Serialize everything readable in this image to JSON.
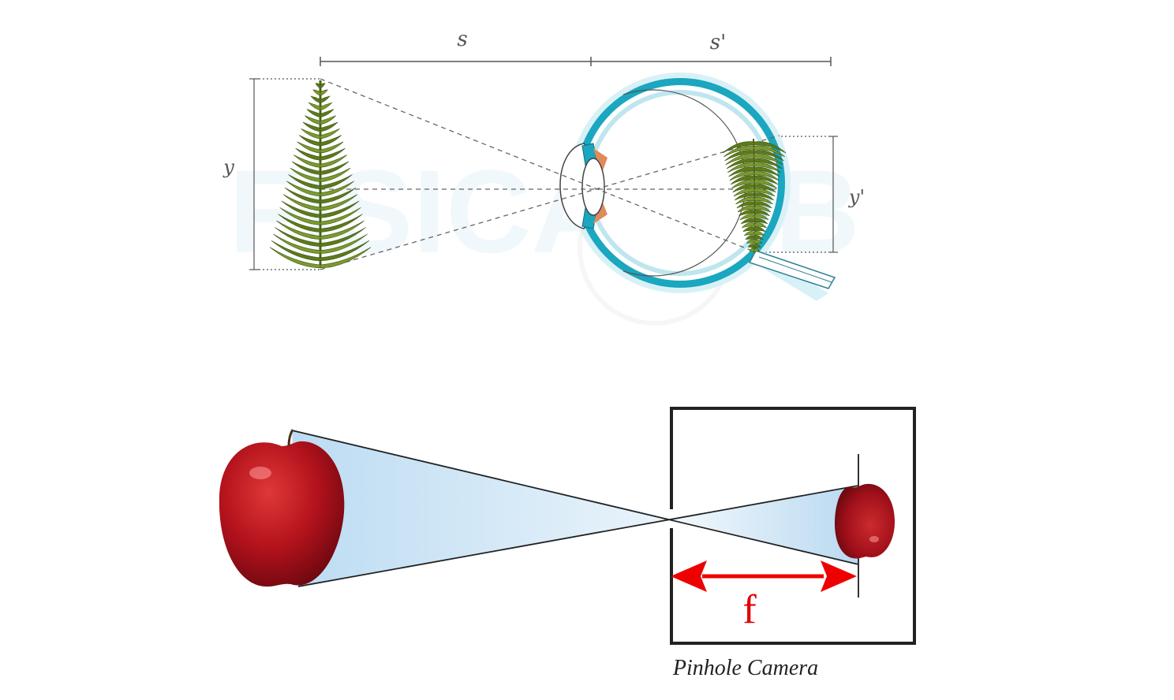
{
  "eye_diagram": {
    "object_distance_label": "s",
    "image_distance_label": "s'",
    "object_height_label": "y",
    "image_height_label": "y'"
  },
  "watermark": {
    "text": "FISICALAB"
  },
  "pinhole_diagram": {
    "focal_length_label": "f",
    "caption": "Pinhole Camera"
  },
  "colors": {
    "ray_dash": "#666666",
    "eye_blue": "#1aa7bf",
    "tree_green": "#5d7a1c",
    "apple_red": "#b0101a",
    "cone_fill": "#cfe6f5",
    "arrow_red": "#ee0000",
    "box_stroke": "#222222"
  }
}
